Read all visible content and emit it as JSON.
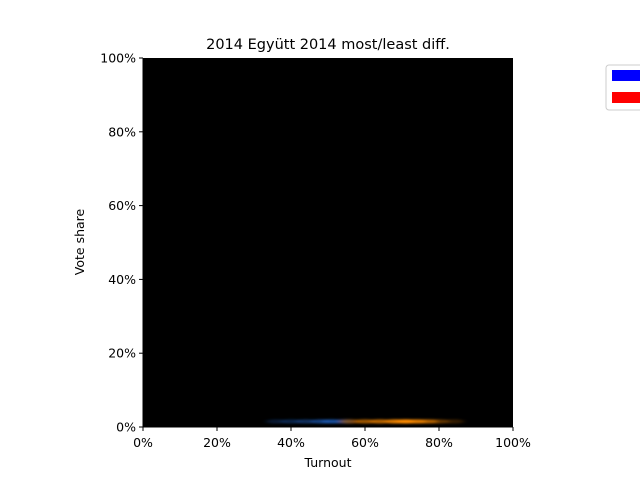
{
  "chart_data": {
    "type": "heatmap",
    "title": "2014 Együtt 2014 most/least diff.",
    "xlabel": "Turnout",
    "ylabel": "Vote share",
    "xlim": [
      0,
      100
    ],
    "ylim": [
      0,
      100
    ],
    "x_ticks": [
      "0%",
      "20%",
      "40%",
      "60%",
      "80%",
      "100%"
    ],
    "y_ticks": [
      "0%",
      "20%",
      "40%",
      "60%",
      "80%",
      "100%"
    ],
    "background_color": "#000000",
    "grid": false,
    "legend_placement": "upper-right, outside plot",
    "series": [
      {
        "color": "#0000ff",
        "display_color": "#1e64c8",
        "points": [
          {
            "x": 36,
            "y": 1.5,
            "intensity": 0.25
          },
          {
            "x": 40,
            "y": 1.5,
            "intensity": 0.35
          },
          {
            "x": 44,
            "y": 1.5,
            "intensity": 0.45
          },
          {
            "x": 48,
            "y": 1.5,
            "intensity": 0.6
          },
          {
            "x": 51,
            "y": 1.5,
            "intensity": 0.7
          },
          {
            "x": 54,
            "y": 1.5,
            "intensity": 0.45
          }
        ]
      },
      {
        "color": "#ff0000",
        "display_color": "#ff8c00",
        "points": [
          {
            "x": 56,
            "y": 1.5,
            "intensity": 0.45
          },
          {
            "x": 60,
            "y": 1.5,
            "intensity": 0.6
          },
          {
            "x": 64,
            "y": 1.5,
            "intensity": 0.7
          },
          {
            "x": 68,
            "y": 1.5,
            "intensity": 0.85
          },
          {
            "x": 71,
            "y": 1.5,
            "intensity": 1.0
          },
          {
            "x": 74,
            "y": 1.5,
            "intensity": 0.8
          },
          {
            "x": 77,
            "y": 1.5,
            "intensity": 0.6
          },
          {
            "x": 80,
            "y": 1.5,
            "intensity": 0.35
          },
          {
            "x": 84,
            "y": 1.5,
            "intensity": 0.2
          }
        ]
      }
    ]
  }
}
